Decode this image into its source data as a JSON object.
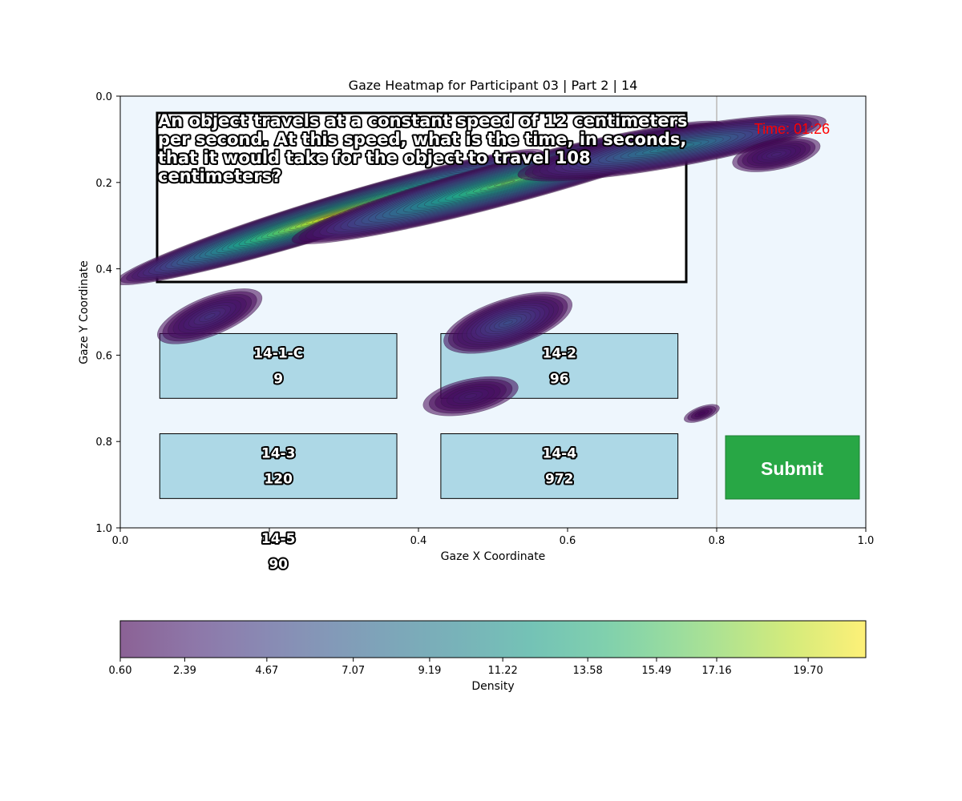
{
  "chart_data": {
    "type": "heatmap",
    "title": "Gaze Heatmap for Participant 03 | Part 2 | 14",
    "xlabel": "Gaze X Coordinate",
    "ylabel": "Gaze Y Coordinate",
    "xlim": [
      0.0,
      1.0
    ],
    "ylim": [
      1.0,
      0.0
    ],
    "y_axis_inverted": true,
    "grid": false,
    "x_ticks": [
      "0.0",
      "0.2",
      "0.4",
      "0.6",
      "0.8",
      "1.0"
    ],
    "y_ticks": [
      "0.0",
      "0.2",
      "0.4",
      "0.6",
      "0.8",
      "1.0"
    ],
    "colormap": "viridis",
    "colorbar": {
      "label": "Density",
      "min": 0.6,
      "max": 21.3,
      "ticks": [
        0.6,
        2.39,
        4.67,
        7.07,
        9.19,
        11.22,
        13.58,
        15.49,
        17.16,
        19.7
      ],
      "tick_labels": [
        "0.60",
        "2.39",
        "4.67",
        "7.07",
        "9.19",
        "11.22",
        "13.58",
        "15.49",
        "17.16",
        "19.70"
      ]
    },
    "question": {
      "text_lines": [
        "An object travels at a constant speed of 12 centimeters",
        "per second. At this speed, what is the time, in seconds,",
        "that it would take for the object to travel 108",
        "centimeters?"
      ],
      "box": [
        0.05,
        0.04,
        0.76,
        0.43
      ]
    },
    "timer": "Time: 01:26",
    "divider_x": 0.8,
    "answer_options": [
      {
        "id": "14-1-C",
        "value": "9",
        "box": [
          0.053,
          0.55,
          0.371,
          0.7
        ]
      },
      {
        "id": "14-2",
        "value": "96",
        "box": [
          0.43,
          0.55,
          0.748,
          0.7
        ]
      },
      {
        "id": "14-3",
        "value": "120",
        "box": [
          0.053,
          0.782,
          0.371,
          0.932
        ]
      },
      {
        "id": "14-4",
        "value": "972",
        "box": [
          0.43,
          0.782,
          0.748,
          0.932
        ]
      },
      {
        "id": "14-5",
        "value": "90",
        "box": null
      }
    ],
    "submit_button": {
      "label": "Submit",
      "box": [
        0.812,
        0.785,
        0.992,
        0.932
      ],
      "color": "#28a745"
    },
    "gaze_clusters": [
      {
        "cx": 0.28,
        "cy": 0.28,
        "sx": 0.3,
        "sy": 0.045,
        "angle_deg": -17,
        "peak": 21.3
      },
      {
        "cx": 0.52,
        "cy": 0.2,
        "sx": 0.3,
        "sy": 0.05,
        "angle_deg": -15,
        "peak": 17.0
      },
      {
        "cx": 0.74,
        "cy": 0.12,
        "sx": 0.21,
        "sy": 0.045,
        "angle_deg": -10,
        "peak": 10.5
      },
      {
        "cx": 0.88,
        "cy": 0.135,
        "sx": 0.06,
        "sy": 0.035,
        "angle_deg": -12,
        "peak": 3.0
      },
      {
        "cx": 0.12,
        "cy": 0.51,
        "sx": 0.075,
        "sy": 0.045,
        "angle_deg": -22,
        "peak": 4.0
      },
      {
        "cx": 0.52,
        "cy": 0.525,
        "sx": 0.09,
        "sy": 0.055,
        "angle_deg": -18,
        "peak": 6.0
      },
      {
        "cx": 0.47,
        "cy": 0.695,
        "sx": 0.065,
        "sy": 0.04,
        "angle_deg": -12,
        "peak": 2.5
      },
      {
        "cx": 0.78,
        "cy": 0.735,
        "sx": 0.025,
        "sy": 0.016,
        "angle_deg": -20,
        "peak": 0.9
      }
    ]
  }
}
